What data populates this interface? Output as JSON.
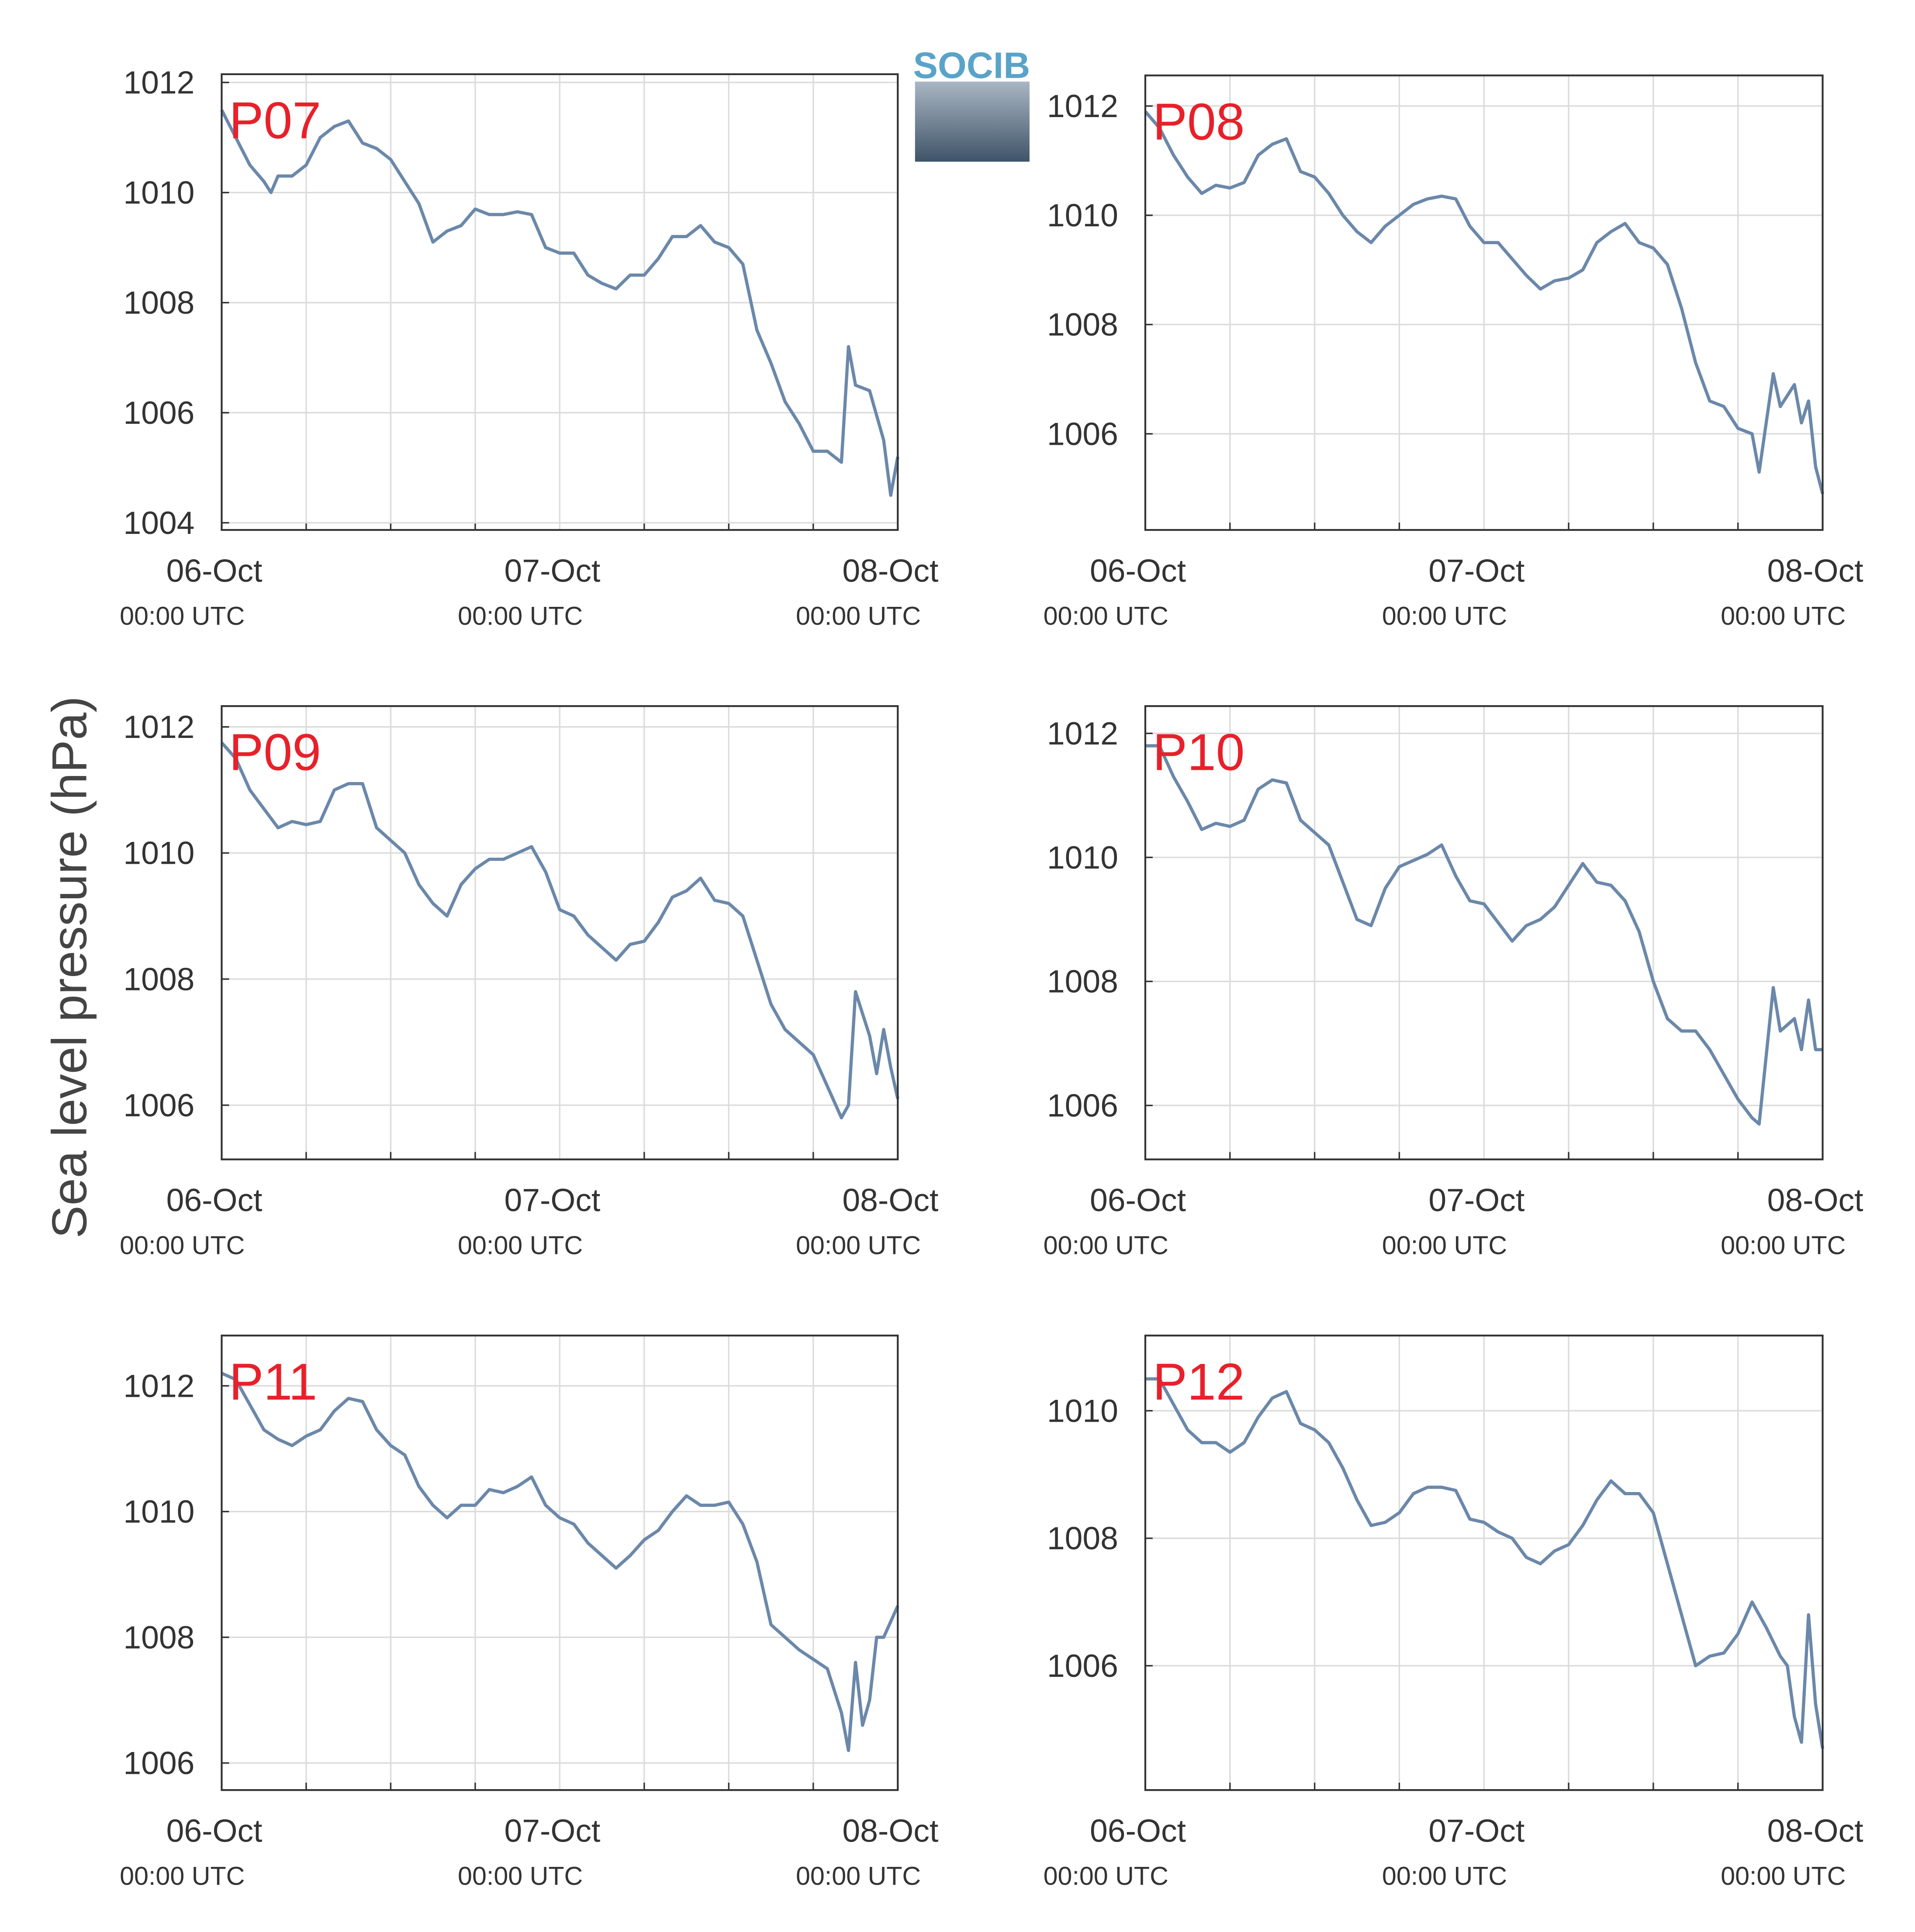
{
  "ylabel": "Sea level pressure (hPa)",
  "logo": "SOCIB",
  "chart_data": [
    {
      "type": "line",
      "title": "P07",
      "color": "#6b88aa",
      "grid": true,
      "xlim": [
        0,
        48
      ],
      "ylim": [
        1003.87,
        1012.15
      ],
      "xticks": [
        {
          "value": 0,
          "label": "06-Oct",
          "sublabel": "00:00 UTC"
        },
        {
          "value": 24,
          "label": "07-Oct",
          "sublabel": "00:00 UTC"
        },
        {
          "value": 48,
          "label": "08-Oct",
          "sublabel": "00:00 UTC"
        }
      ],
      "xminor": [
        6,
        12,
        18,
        30,
        36,
        42
      ],
      "yticks": [
        1004,
        1006,
        1008,
        1010,
        1012
      ],
      "x": [
        0,
        1,
        2,
        3,
        3.5,
        4,
        5,
        6,
        7,
        8,
        9,
        10,
        11,
        12,
        13,
        14,
        15,
        16,
        17,
        18,
        19,
        20,
        21,
        22,
        23,
        24,
        25,
        26,
        27,
        28,
        29,
        30,
        31,
        32,
        33,
        34,
        35,
        36,
        37,
        38,
        39,
        40,
        41,
        42,
        43,
        44,
        44.5,
        45,
        46,
        47,
        47.5,
        48
      ],
      "values": [
        1011.5,
        1011.0,
        1010.5,
        1010.2,
        1010.0,
        1010.3,
        1010.3,
        1010.5,
        1011.0,
        1011.2,
        1011.3,
        1010.9,
        1010.8,
        1010.6,
        1010.2,
        1009.8,
        1009.1,
        1009.3,
        1009.4,
        1009.7,
        1009.6,
        1009.6,
        1009.65,
        1009.6,
        1009.0,
        1008.9,
        1008.9,
        1008.5,
        1008.35,
        1008.25,
        1008.5,
        1008.5,
        1008.8,
        1009.2,
        1009.2,
        1009.4,
        1009.1,
        1009.0,
        1008.7,
        1007.5,
        1006.9,
        1006.2,
        1005.8,
        1005.3,
        1005.3,
        1005.1,
        1007.2,
        1006.5,
        1006.4,
        1005.5,
        1004.5,
        1005.2
      ]
    },
    {
      "type": "line",
      "title": "P08",
      "color": "#6b88aa",
      "grid": true,
      "xlim": [
        0,
        48
      ],
      "ylim": [
        1004.24,
        1012.56
      ],
      "xticks": [
        {
          "value": 0,
          "label": "06-Oct",
          "sublabel": "00:00 UTC"
        },
        {
          "value": 24,
          "label": "07-Oct",
          "sublabel": "00:00 UTC"
        },
        {
          "value": 48,
          "label": "08-Oct",
          "sublabel": "00:00 UTC"
        }
      ],
      "xminor": [
        6,
        12,
        18,
        30,
        36,
        42
      ],
      "yticks": [
        1006,
        1008,
        1010,
        1012
      ],
      "x": [
        0,
        1,
        2,
        3,
        4,
        5,
        6,
        7,
        8,
        9,
        10,
        11,
        12,
        13,
        14,
        15,
        16,
        17,
        18,
        19,
        20,
        21,
        22,
        23,
        24,
        25,
        26,
        27,
        28,
        29,
        30,
        31,
        32,
        33,
        34,
        35,
        36,
        37,
        38,
        39,
        40,
        41,
        42,
        43,
        43.5,
        44,
        44.5,
        45,
        46,
        46.5,
        47,
        47.5,
        48
      ],
      "values": [
        1011.9,
        1011.6,
        1011.1,
        1010.7,
        1010.4,
        1010.55,
        1010.5,
        1010.6,
        1011.1,
        1011.3,
        1011.4,
        1010.8,
        1010.7,
        1010.4,
        1010.0,
        1009.7,
        1009.5,
        1009.8,
        1010.0,
        1010.2,
        1010.3,
        1010.35,
        1010.3,
        1009.8,
        1009.5,
        1009.5,
        1009.2,
        1008.9,
        1008.65,
        1008.8,
        1008.85,
        1009.0,
        1009.5,
        1009.7,
        1009.85,
        1009.5,
        1009.4,
        1009.1,
        1008.3,
        1007.3,
        1006.6,
        1006.5,
        1006.1,
        1006.0,
        1005.3,
        1006.2,
        1007.1,
        1006.5,
        1006.9,
        1006.2,
        1006.6,
        1005.4,
        1004.9
      ]
    },
    {
      "type": "line",
      "title": "P09",
      "color": "#6b88aa",
      "grid": true,
      "xlim": [
        0,
        48
      ],
      "ylim": [
        1005.14,
        1012.33
      ],
      "xticks": [
        {
          "value": 0,
          "label": "06-Oct",
          "sublabel": "00:00 UTC"
        },
        {
          "value": 24,
          "label": "07-Oct",
          "sublabel": "00:00 UTC"
        },
        {
          "value": 48,
          "label": "08-Oct",
          "sublabel": "00:00 UTC"
        }
      ],
      "xminor": [
        6,
        12,
        18,
        30,
        36,
        42
      ],
      "yticks": [
        1006,
        1008,
        1010,
        1012
      ],
      "x": [
        0,
        1,
        2,
        3,
        4,
        5,
        6,
        7,
        8,
        9,
        10,
        11,
        12,
        13,
        14,
        15,
        16,
        17,
        18,
        19,
        20,
        21,
        22,
        23,
        24,
        25,
        26,
        27,
        28,
        29,
        30,
        31,
        32,
        33,
        34,
        35,
        36,
        37,
        38,
        39,
        40,
        41,
        42,
        43,
        44,
        44.5,
        45,
        46,
        46.5,
        47,
        47.5,
        48
      ],
      "values": [
        1011.75,
        1011.5,
        1011.0,
        1010.7,
        1010.4,
        1010.5,
        1010.45,
        1010.5,
        1011.0,
        1011.1,
        1011.1,
        1010.4,
        1010.2,
        1010.0,
        1009.5,
        1009.2,
        1009.0,
        1009.5,
        1009.75,
        1009.9,
        1009.9,
        1010.0,
        1010.1,
        1009.7,
        1009.1,
        1009.0,
        1008.7,
        1008.5,
        1008.3,
        1008.55,
        1008.6,
        1008.9,
        1009.3,
        1009.4,
        1009.6,
        1009.25,
        1009.2,
        1009.0,
        1008.3,
        1007.6,
        1007.2,
        1007.0,
        1006.8,
        1006.3,
        1005.8,
        1006.0,
        1007.8,
        1007.1,
        1006.5,
        1007.2,
        1006.6,
        1006.1
      ]
    },
    {
      "type": "line",
      "title": "P10",
      "color": "#6b88aa",
      "grid": true,
      "xlim": [
        0,
        48
      ],
      "ylim": [
        1005.13,
        1012.44
      ],
      "xticks": [
        {
          "value": 0,
          "label": "06-Oct",
          "sublabel": "00:00 UTC"
        },
        {
          "value": 24,
          "label": "07-Oct",
          "sublabel": "00:00 UTC"
        },
        {
          "value": 48,
          "label": "08-Oct",
          "sublabel": "00:00 UTC"
        }
      ],
      "xminor": [
        6,
        12,
        18,
        30,
        36,
        42
      ],
      "yticks": [
        1006,
        1008,
        1010,
        1012
      ],
      "x": [
        0,
        1,
        2,
        3,
        4,
        5,
        6,
        7,
        8,
        9,
        10,
        11,
        12,
        13,
        14,
        15,
        16,
        17,
        18,
        19,
        20,
        21,
        22,
        23,
        24,
        25,
        26,
        27,
        28,
        29,
        30,
        31,
        32,
        33,
        34,
        35,
        36,
        37,
        38,
        39,
        40,
        41,
        42,
        43,
        43.5,
        44,
        44.5,
        45,
        46,
        46.5,
        47,
        47.5,
        48
      ],
      "values": [
        1011.8,
        1011.8,
        1011.3,
        1010.9,
        1010.45,
        1010.55,
        1010.5,
        1010.6,
        1011.1,
        1011.25,
        1011.2,
        1010.6,
        1010.4,
        1010.2,
        1009.6,
        1009.0,
        1008.9,
        1009.5,
        1009.85,
        1009.95,
        1010.05,
        1010.2,
        1009.7,
        1009.3,
        1009.25,
        1008.95,
        1008.65,
        1008.9,
        1009.0,
        1009.2,
        1009.55,
        1009.9,
        1009.6,
        1009.55,
        1009.3,
        1008.8,
        1008.0,
        1007.4,
        1007.2,
        1007.2,
        1006.9,
        1006.5,
        1006.1,
        1005.8,
        1005.7,
        1006.8,
        1007.9,
        1007.2,
        1007.4,
        1006.9,
        1007.7,
        1006.9,
        1006.9
      ]
    },
    {
      "type": "line",
      "title": "P11",
      "color": "#6b88aa",
      "grid": true,
      "xlim": [
        0,
        48
      ],
      "ylim": [
        1005.57,
        1012.8
      ],
      "xticks": [
        {
          "value": 0,
          "label": "06-Oct",
          "sublabel": "00:00 UTC"
        },
        {
          "value": 24,
          "label": "07-Oct",
          "sublabel": "00:00 UTC"
        },
        {
          "value": 48,
          "label": "08-Oct",
          "sublabel": "00:00 UTC"
        }
      ],
      "xminor": [
        6,
        12,
        18,
        30,
        36,
        42
      ],
      "yticks": [
        1006,
        1008,
        1010,
        1012
      ],
      "x": [
        0,
        1,
        2,
        3,
        4,
        5,
        6,
        7,
        8,
        9,
        10,
        11,
        12,
        13,
        14,
        15,
        16,
        17,
        18,
        19,
        20,
        21,
        22,
        23,
        24,
        25,
        26,
        27,
        28,
        29,
        30,
        31,
        32,
        33,
        34,
        35,
        36,
        37,
        38,
        39,
        40,
        41,
        42,
        43,
        44,
        44.5,
        45,
        45.5,
        46,
        46.5,
        47,
        48
      ],
      "values": [
        1012.2,
        1012.1,
        1011.7,
        1011.3,
        1011.15,
        1011.05,
        1011.2,
        1011.3,
        1011.6,
        1011.8,
        1011.75,
        1011.3,
        1011.05,
        1010.9,
        1010.4,
        1010.1,
        1009.9,
        1010.1,
        1010.1,
        1010.35,
        1010.3,
        1010.4,
        1010.55,
        1010.1,
        1009.9,
        1009.8,
        1009.5,
        1009.3,
        1009.1,
        1009.3,
        1009.55,
        1009.7,
        1010.0,
        1010.25,
        1010.1,
        1010.1,
        1010.15,
        1009.8,
        1009.2,
        1008.2,
        1008.0,
        1007.8,
        1007.65,
        1007.5,
        1006.8,
        1006.2,
        1007.6,
        1006.6,
        1007.0,
        1008.0,
        1008.0,
        1008.5
      ]
    },
    {
      "type": "line",
      "title": "P12",
      "color": "#6b88aa",
      "grid": true,
      "xlim": [
        0,
        48
      ],
      "ylim": [
        1004.05,
        1011.18
      ],
      "xticks": [
        {
          "value": 0,
          "label": "06-Oct",
          "sublabel": "00:00 UTC"
        },
        {
          "value": 24,
          "label": "07-Oct",
          "sublabel": "00:00 UTC"
        },
        {
          "value": 48,
          "label": "08-Oct",
          "sublabel": "00:00 UTC"
        }
      ],
      "xminor": [
        6,
        12,
        18,
        30,
        36,
        42
      ],
      "yticks": [
        1006,
        1008,
        1010
      ],
      "x": [
        0,
        1,
        2,
        3,
        4,
        5,
        6,
        7,
        8,
        9,
        10,
        11,
        12,
        13,
        14,
        15,
        16,
        17,
        18,
        19,
        20,
        21,
        22,
        23,
        24,
        25,
        26,
        27,
        28,
        29,
        30,
        31,
        32,
        33,
        34,
        35,
        36,
        37,
        38,
        39,
        40,
        41,
        42,
        43,
        44,
        45,
        45.5,
        46,
        46.5,
        47,
        47.5,
        48
      ],
      "values": [
        1010.5,
        1010.5,
        1010.1,
        1009.7,
        1009.5,
        1009.5,
        1009.35,
        1009.5,
        1009.9,
        1010.2,
        1010.3,
        1009.8,
        1009.7,
        1009.5,
        1009.1,
        1008.6,
        1008.2,
        1008.25,
        1008.4,
        1008.7,
        1008.8,
        1008.8,
        1008.75,
        1008.3,
        1008.25,
        1008.1,
        1008.0,
        1007.7,
        1007.6,
        1007.8,
        1007.9,
        1008.2,
        1008.6,
        1008.9,
        1008.7,
        1008.7,
        1008.4,
        1007.6,
        1006.8,
        1006.0,
        1006.15,
        1006.2,
        1006.5,
        1007.0,
        1006.6,
        1006.15,
        1006.0,
        1005.2,
        1004.8,
        1006.8,
        1005.4,
        1004.7
      ]
    }
  ]
}
